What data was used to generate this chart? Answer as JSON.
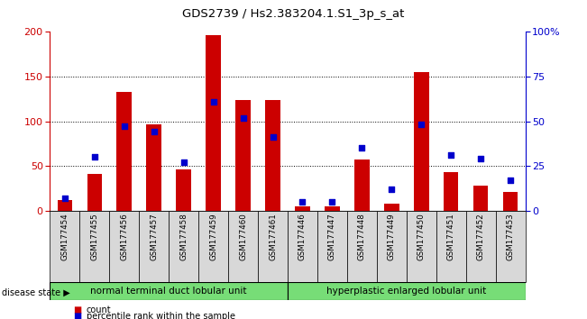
{
  "title": "GDS2739 / Hs2.383204.1.S1_3p_s_at",
  "samples": [
    "GSM177454",
    "GSM177455",
    "GSM177456",
    "GSM177457",
    "GSM177458",
    "GSM177459",
    "GSM177460",
    "GSM177461",
    "GSM177446",
    "GSM177447",
    "GSM177448",
    "GSM177449",
    "GSM177450",
    "GSM177451",
    "GSM177452",
    "GSM177453"
  ],
  "counts": [
    12,
    41,
    133,
    96,
    46,
    196,
    124,
    124,
    5,
    5,
    57,
    8,
    155,
    43,
    28,
    21
  ],
  "percentiles": [
    7,
    30,
    47,
    44,
    27,
    61,
    52,
    41,
    5,
    5,
    35,
    12,
    48,
    31,
    29,
    17
  ],
  "group1_label": "normal terminal duct lobular unit",
  "group2_label": "hyperplastic enlarged lobular unit",
  "group1_count": 8,
  "group2_count": 8,
  "disease_state_label": "disease state",
  "legend_count": "count",
  "legend_pct": "percentile rank within the sample",
  "bar_color": "#cc0000",
  "dot_color": "#0000cc",
  "ylim_left": [
    0,
    200
  ],
  "ylim_right": [
    0,
    100
  ],
  "yticks_left": [
    0,
    50,
    100,
    150,
    200
  ],
  "yticks_right": [
    0,
    25,
    50,
    75,
    100
  ],
  "yticklabels_right": [
    "0",
    "25",
    "50",
    "75",
    "100%"
  ],
  "bg_color": "#d8d8d8",
  "group1_color": "#77dd77",
  "group2_color": "#77dd77"
}
